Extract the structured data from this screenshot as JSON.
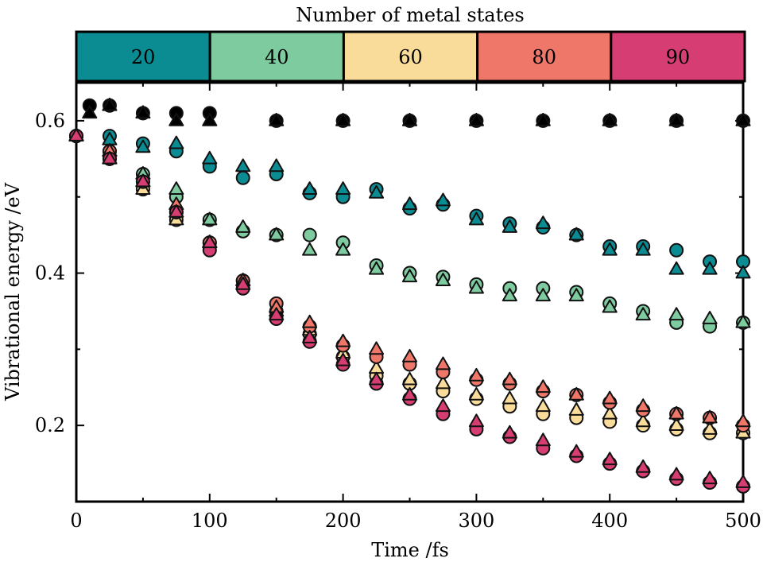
{
  "chart_data": {
    "type": "scatter",
    "title": "Number of metal states",
    "xlabel": "Time /fs",
    "ylabel": "Vibrational energy /eV",
    "xlim": [
      0,
      500
    ],
    "ylim": [
      0.1,
      0.65
    ],
    "xticks": [
      0,
      100,
      200,
      300,
      400,
      500
    ],
    "yticks": [
      0.2,
      0.4,
      0.6
    ],
    "grid": false,
    "legend": {
      "placement": "top",
      "entries": [
        {
          "label": "20",
          "color": "#0b8b92"
        },
        {
          "label": "40",
          "color": "#7fcba0"
        },
        {
          "label": "60",
          "color": "#fadc9a"
        },
        {
          "label": "80",
          "color": "#ef776a"
        },
        {
          "label": "90",
          "color": "#d63d72"
        }
      ]
    },
    "series": [
      {
        "group": "reference",
        "color": "#000000",
        "marker": "circle",
        "x": [
          0,
          10,
          25,
          50,
          75,
          100,
          150,
          200,
          250,
          300,
          350,
          400,
          450,
          500
        ],
        "y": [
          0.58,
          0.62,
          0.62,
          0.61,
          0.61,
          0.61,
          0.6,
          0.6,
          0.6,
          0.6,
          0.6,
          0.6,
          0.6,
          0.6
        ]
      },
      {
        "group": "reference",
        "color": "#000000",
        "marker": "triangle",
        "x": [
          0,
          10,
          25,
          50,
          75,
          100,
          150,
          200,
          250,
          300,
          350,
          400,
          450,
          500
        ],
        "y": [
          0.58,
          0.61,
          0.62,
          0.61,
          0.6,
          0.6,
          0.6,
          0.6,
          0.6,
          0.6,
          0.6,
          0.6,
          0.6,
          0.6
        ]
      },
      {
        "group": "20",
        "color": "#0b8b92",
        "marker": "circle",
        "x": [
          0,
          25,
          50,
          75,
          100,
          125,
          150,
          175,
          200,
          225,
          250,
          275,
          300,
          325,
          350,
          375,
          400,
          425,
          450,
          475,
          500
        ],
        "y": [
          0.58,
          0.58,
          0.57,
          0.56,
          0.54,
          0.525,
          0.53,
          0.505,
          0.5,
          0.51,
          0.485,
          0.49,
          0.475,
          0.465,
          0.46,
          0.45,
          0.435,
          0.435,
          0.43,
          0.415,
          0.415
        ]
      },
      {
        "group": "20",
        "color": "#0b8b92",
        "marker": "triangle",
        "x": [
          0,
          25,
          50,
          75,
          100,
          125,
          150,
          175,
          200,
          225,
          250,
          275,
          300,
          325,
          350,
          375,
          400,
          425,
          450,
          475,
          500
        ],
        "y": [
          0.58,
          0.575,
          0.565,
          0.57,
          0.55,
          0.54,
          0.54,
          0.51,
          0.51,
          0.505,
          0.49,
          0.495,
          0.47,
          0.46,
          0.465,
          0.45,
          0.43,
          0.43,
          0.405,
          0.405,
          0.4
        ]
      },
      {
        "group": "40",
        "color": "#7fcba0",
        "marker": "circle",
        "x": [
          0,
          25,
          50,
          75,
          100,
          125,
          150,
          175,
          200,
          225,
          250,
          275,
          300,
          325,
          350,
          375,
          400,
          425,
          450,
          475,
          500
        ],
        "y": [
          0.58,
          0.56,
          0.53,
          0.5,
          0.47,
          0.455,
          0.45,
          0.45,
          0.44,
          0.41,
          0.4,
          0.395,
          0.385,
          0.38,
          0.38,
          0.375,
          0.36,
          0.35,
          0.335,
          0.33,
          0.335
        ]
      },
      {
        "group": "40",
        "color": "#7fcba0",
        "marker": "triangle",
        "x": [
          0,
          25,
          50,
          75,
          100,
          125,
          150,
          175,
          200,
          225,
          250,
          275,
          300,
          325,
          350,
          375,
          400,
          425,
          450,
          475,
          500
        ],
        "y": [
          0.58,
          0.56,
          0.53,
          0.51,
          0.47,
          0.46,
          0.45,
          0.43,
          0.43,
          0.405,
          0.395,
          0.39,
          0.38,
          0.37,
          0.37,
          0.37,
          0.355,
          0.345,
          0.345,
          0.34,
          0.335
        ]
      },
      {
        "group": "60",
        "color": "#fadc9a",
        "marker": "circle",
        "x": [
          0,
          25,
          50,
          75,
          100,
          125,
          150,
          175,
          200,
          225,
          250,
          275,
          300,
          325,
          350,
          375,
          400,
          425,
          450,
          475,
          500
        ],
        "y": [
          0.58,
          0.55,
          0.51,
          0.47,
          0.44,
          0.39,
          0.35,
          0.32,
          0.29,
          0.265,
          0.255,
          0.245,
          0.235,
          0.225,
          0.215,
          0.21,
          0.205,
          0.2,
          0.195,
          0.19,
          0.19
        ]
      },
      {
        "group": "60",
        "color": "#fadc9a",
        "marker": "triangle",
        "x": [
          0,
          25,
          50,
          75,
          100,
          125,
          150,
          175,
          200,
          225,
          250,
          275,
          300,
          325,
          350,
          375,
          400,
          425,
          450,
          475,
          500
        ],
        "y": [
          0.58,
          0.55,
          0.51,
          0.47,
          0.44,
          0.39,
          0.35,
          0.325,
          0.295,
          0.275,
          0.26,
          0.255,
          0.24,
          0.235,
          0.225,
          0.22,
          0.215,
          0.205,
          0.2,
          0.195,
          0.19
        ]
      },
      {
        "group": "80",
        "color": "#ef776a",
        "marker": "circle",
        "x": [
          0,
          25,
          50,
          75,
          100,
          125,
          150,
          175,
          200,
          225,
          250,
          275,
          300,
          325,
          350,
          375,
          400,
          425,
          450,
          475,
          500
        ],
        "y": [
          0.58,
          0.56,
          0.52,
          0.48,
          0.44,
          0.39,
          0.36,
          0.33,
          0.305,
          0.29,
          0.28,
          0.27,
          0.26,
          0.255,
          0.245,
          0.24,
          0.23,
          0.22,
          0.215,
          0.21,
          0.2
        ]
      },
      {
        "group": "80",
        "color": "#ef776a",
        "marker": "triangle",
        "x": [
          0,
          25,
          50,
          75,
          100,
          125,
          150,
          175,
          200,
          225,
          250,
          275,
          300,
          325,
          350,
          375,
          400,
          425,
          450,
          475,
          500
        ],
        "y": [
          0.58,
          0.56,
          0.52,
          0.49,
          0.44,
          0.39,
          0.355,
          0.335,
          0.31,
          0.3,
          0.29,
          0.28,
          0.265,
          0.26,
          0.25,
          0.24,
          0.235,
          0.225,
          0.215,
          0.21,
          0.205
        ]
      },
      {
        "group": "90",
        "color": "#d63d72",
        "marker": "circle",
        "x": [
          0,
          25,
          50,
          75,
          100,
          125,
          150,
          175,
          200,
          225,
          250,
          275,
          300,
          325,
          350,
          375,
          400,
          425,
          450,
          475,
          500
        ],
        "y": [
          0.58,
          0.55,
          0.52,
          0.48,
          0.43,
          0.38,
          0.34,
          0.31,
          0.28,
          0.255,
          0.235,
          0.215,
          0.195,
          0.185,
          0.17,
          0.16,
          0.15,
          0.14,
          0.13,
          0.125,
          0.12
        ]
      },
      {
        "group": "90",
        "color": "#d63d72",
        "marker": "triangle",
        "x": [
          0,
          25,
          50,
          75,
          100,
          125,
          150,
          175,
          200,
          225,
          250,
          275,
          300,
          325,
          350,
          375,
          400,
          425,
          450,
          475,
          500
        ],
        "y": [
          0.58,
          0.55,
          0.52,
          0.48,
          0.44,
          0.385,
          0.345,
          0.315,
          0.285,
          0.26,
          0.24,
          0.225,
          0.205,
          0.19,
          0.18,
          0.165,
          0.155,
          0.145,
          0.135,
          0.13,
          0.125
        ]
      }
    ]
  }
}
